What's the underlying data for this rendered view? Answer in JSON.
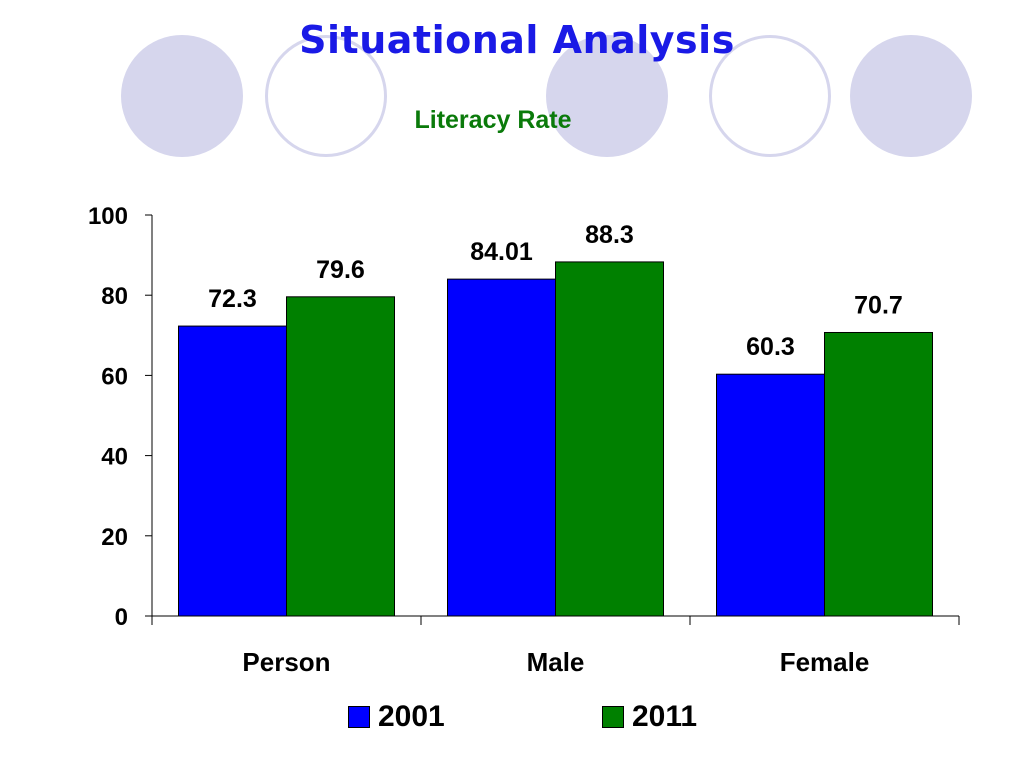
{
  "slide": {
    "title": "Situational Analysis"
  },
  "colors": {
    "title": "#1a1ae6",
    "chart_title": "#0a7a0a",
    "decor": "#d6d6ed",
    "series_2001": "#0000ff",
    "series_2011": "#008000"
  },
  "chart_data": {
    "type": "bar",
    "title": "Literacy Rate",
    "xlabel": "",
    "ylabel": "",
    "categories": [
      "Person",
      "Male",
      "Female"
    ],
    "series": [
      {
        "name": "2001",
        "values": [
          72.3,
          84.01,
          60.3
        ],
        "labels": [
          "72.3",
          "84.01",
          "60.3"
        ]
      },
      {
        "name": "2011",
        "values": [
          79.6,
          88.3,
          70.7
        ],
        "labels": [
          "79.6",
          "88.3",
          "70.7"
        ]
      }
    ],
    "ylim": [
      0,
      100
    ],
    "yticks": [
      "0",
      "20",
      "40",
      "60",
      "80",
      "100"
    ],
    "grid": false,
    "legend": "bottom"
  }
}
